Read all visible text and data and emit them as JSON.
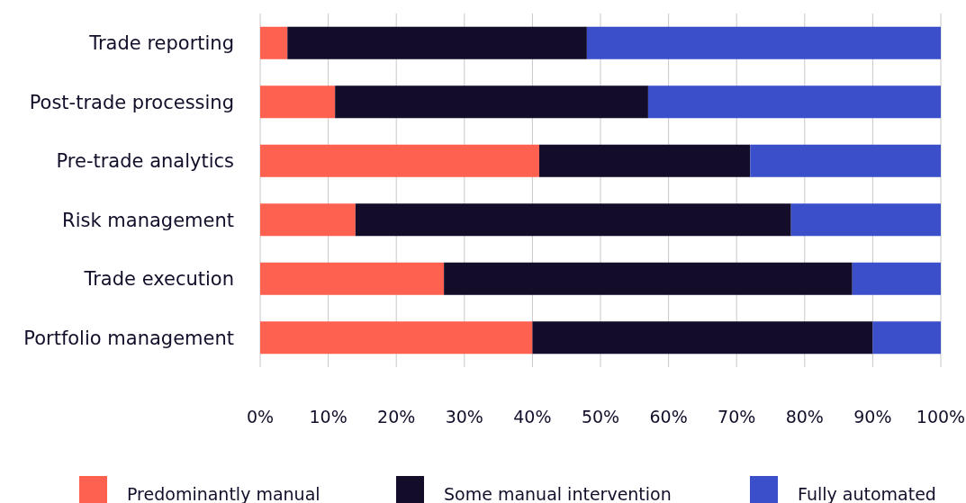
{
  "chart_data": {
    "type": "bar",
    "orientation": "horizontal",
    "stacked": true,
    "categories": [
      "Trade reporting",
      "Post-trade processing",
      "Pre-trade analytics",
      "Risk management",
      "Trade execution",
      "Portfolio management"
    ],
    "series": [
      {
        "name": "Predominantly manual",
        "color": "#ff6150",
        "values": [
          4,
          11,
          41,
          14,
          27,
          40
        ]
      },
      {
        "name": "Some manual intervention",
        "color": "#140d2a",
        "values": [
          44,
          46,
          31,
          64,
          60,
          50
        ]
      },
      {
        "name": "Fully automated",
        "color": "#3c4fcb",
        "values": [
          52,
          43,
          28,
          22,
          13,
          10
        ]
      }
    ],
    "xlim": [
      0,
      100
    ],
    "xticks": [
      {
        "value": 0,
        "label": "0%"
      },
      {
        "value": 10,
        "label": "10%"
      },
      {
        "value": 20,
        "label": "20%"
      },
      {
        "value": 30,
        "label": "30%"
      },
      {
        "value": 40,
        "label": "40%"
      },
      {
        "value": 50,
        "label": "50%"
      },
      {
        "value": 60,
        "label": "60%"
      },
      {
        "value": 70,
        "label": "70%"
      },
      {
        "value": 80,
        "label": "80%"
      },
      {
        "value": 90,
        "label": "90%"
      },
      {
        "value": 100,
        "label": "100%"
      }
    ],
    "grid": "x",
    "legend": "bottom"
  }
}
